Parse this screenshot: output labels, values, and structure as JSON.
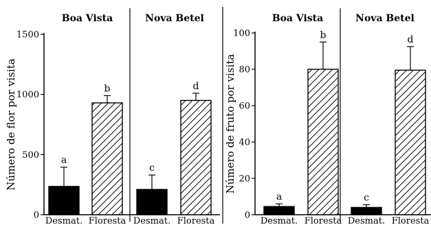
{
  "chart_data": [
    {
      "type": "bar",
      "ylabel": "Número de flor por visita",
      "ylim": [
        0,
        1500
      ],
      "yticks": [
        0,
        500,
        1000,
        1500
      ],
      "groups": [
        {
          "site": "Boa Vista",
          "bars": [
            {
              "category": "Desmat.",
              "value": 235,
              "error": 160,
              "letter": "a",
              "fill": "solid-black"
            },
            {
              "category": "Floresta",
              "value": 930,
              "error": 60,
              "letter": "b",
              "fill": "diagonal-hatch"
            }
          ]
        },
        {
          "site": "Nova Betel",
          "bars": [
            {
              "category": "Desmat.",
              "value": 210,
              "error": 120,
              "letter": "c",
              "fill": "solid-black"
            },
            {
              "category": "Floresta",
              "value": 950,
              "error": 60,
              "letter": "d",
              "fill": "diagonal-hatch"
            }
          ]
        }
      ]
    },
    {
      "type": "bar",
      "ylabel": "Número de fruto por visita",
      "ylim": [
        0,
        100
      ],
      "yticks": [
        0,
        20,
        40,
        60,
        80,
        100
      ],
      "groups": [
        {
          "site": "Boa Vista",
          "bars": [
            {
              "category": "Desmat.",
              "value": 4.5,
              "error": 1.5,
              "letter": "a",
              "fill": "solid-black"
            },
            {
              "category": "Floresta",
              "value": 80,
              "error": 15,
              "letter": "b",
              "fill": "diagonal-hatch"
            }
          ]
        },
        {
          "site": "Nova Betel",
          "bars": [
            {
              "category": "Desmat.",
              "value": 4,
              "error": 1.5,
              "letter": "c",
              "fill": "solid-black"
            },
            {
              "category": "Floresta",
              "value": 79.5,
              "error": 13,
              "letter": "d",
              "fill": "diagonal-hatch"
            }
          ]
        }
      ]
    }
  ],
  "colors": {
    "bar_solid": "#000000",
    "bar_hatch_fill": "#ffffff",
    "ink": "#000000"
  }
}
